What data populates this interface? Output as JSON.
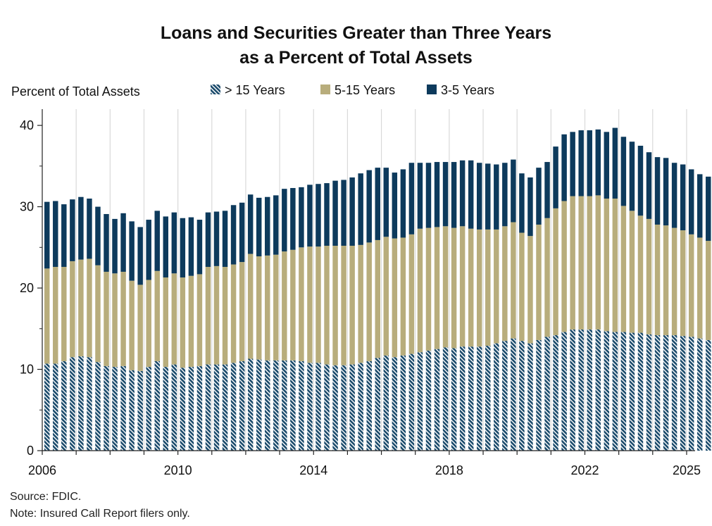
{
  "chart_data": {
    "type": "bar",
    "stacked": true,
    "title": [
      "Loans and Securities Greater than Three Years",
      "as a Percent of Total Assets"
    ],
    "ylabel": "Percent of Total Assets",
    "ylim": [
      0,
      42
    ],
    "yticks": [
      0,
      10,
      20,
      30,
      40
    ],
    "xlim": [
      2006,
      2025.25
    ],
    "xticks": [
      {
        "value": 2006,
        "label": "2006"
      },
      {
        "value": 2010,
        "label": "2010"
      },
      {
        "value": 2014,
        "label": "2014"
      },
      {
        "value": 2018,
        "label": "2018"
      },
      {
        "value": 2022,
        "label": "2022"
      },
      {
        "value": 2025,
        "label": "2025"
      }
    ],
    "gridlines_x": [
      2007,
      2008,
      2009,
      2010,
      2011,
      2012,
      2013,
      2014,
      2015,
      2016,
      2017,
      2018,
      2019,
      2020,
      2021,
      2022,
      2023,
      2024,
      2025
    ],
    "x_start": "2006 Q1",
    "x_step": "quarter",
    "legend": {
      "placement": "top",
      "entries": [
        {
          "name": "> 15 Years",
          "color": "#1a4a6b",
          "pattern": "hatch"
        },
        {
          "name": "5-15 Years",
          "color": "#b8ad7c",
          "pattern": "solid"
        },
        {
          "name": "3-5 Years",
          "color": "#0d3a5c",
          "pattern": "solid"
        }
      ]
    },
    "series": [
      {
        "name": "> 15 Years",
        "values": [
          10.7,
          10.7,
          11.0,
          11.5,
          11.6,
          11.5,
          10.9,
          10.4,
          10.3,
          10.4,
          9.9,
          9.8,
          10.3,
          11.0,
          10.3,
          10.6,
          10.2,
          10.3,
          10.4,
          10.6,
          10.6,
          10.6,
          10.8,
          11.0,
          11.3,
          11.2,
          11.1,
          11.1,
          11.1,
          11.1,
          11.0,
          10.8,
          10.8,
          10.6,
          10.5,
          10.5,
          10.6,
          10.8,
          11.0,
          11.4,
          11.7,
          11.5,
          11.7,
          11.9,
          12.1,
          12.3,
          12.5,
          12.7,
          12.6,
          12.8,
          12.8,
          12.8,
          12.9,
          13.2,
          13.5,
          13.8,
          13.5,
          13.2,
          13.6,
          14.0,
          14.2,
          14.6,
          14.9,
          14.9,
          14.9,
          14.9,
          14.7,
          14.6,
          14.6,
          14.5,
          14.5,
          14.3,
          14.2,
          14.2,
          14.2,
          14.1,
          14.0,
          13.8,
          13.6,
          13.5,
          13.3
        ]
      },
      {
        "name": "5-15 Years",
        "values": [
          11.7,
          11.9,
          11.6,
          11.8,
          11.9,
          12.1,
          11.9,
          11.6,
          11.5,
          11.6,
          11.0,
          10.6,
          10.7,
          11.1,
          11.0,
          11.2,
          11.1,
          11.2,
          11.3,
          12.0,
          12.1,
          12.0,
          12.1,
          12.2,
          12.9,
          12.7,
          12.9,
          13.0,
          13.4,
          13.6,
          14.0,
          14.3,
          14.3,
          14.6,
          14.7,
          14.7,
          14.6,
          14.5,
          14.6,
          14.5,
          14.6,
          14.6,
          14.5,
          14.7,
          15.2,
          15.1,
          15.0,
          14.9,
          14.8,
          14.8,
          14.5,
          14.4,
          14.3,
          14.0,
          14.1,
          14.3,
          13.3,
          13.2,
          14.2,
          14.6,
          15.6,
          16.1,
          16.4,
          16.4,
          16.4,
          16.5,
          16.3,
          16.4,
          15.5,
          15.0,
          14.4,
          14.2,
          13.6,
          13.5,
          13.2,
          13.0,
          12.6,
          12.4,
          12.2,
          12.0,
          11.8
        ]
      },
      {
        "name": "3-5 Years",
        "values": [
          8.2,
          8.1,
          7.7,
          7.6,
          7.7,
          7.4,
          7.2,
          7.1,
          6.7,
          7.2,
          7.3,
          7.1,
          7.4,
          7.4,
          7.5,
          7.5,
          7.3,
          7.2,
          6.7,
          6.7,
          6.7,
          6.9,
          7.3,
          7.3,
          7.3,
          7.2,
          7.2,
          7.3,
          7.7,
          7.6,
          7.4,
          7.6,
          7.7,
          7.7,
          8.0,
          8.1,
          8.4,
          8.8,
          8.9,
          8.9,
          8.5,
          8.1,
          8.4,
          8.8,
          8.1,
          8.0,
          8.0,
          7.9,
          8.1,
          8.1,
          8.4,
          8.2,
          8.1,
          8.0,
          7.8,
          7.7,
          7.3,
          7.2,
          7.0,
          6.9,
          7.6,
          8.2,
          7.9,
          8.1,
          8.1,
          8.1,
          8.2,
          8.7,
          8.5,
          8.5,
          8.6,
          8.2,
          8.3,
          8.3,
          8.0,
          8.1,
          8.0,
          7.8,
          7.9,
          8.1,
          8.3
        ]
      }
    ],
    "source_note": "Source: FDIC.",
    "footnote": "Note: Insured Call Report filers only."
  }
}
